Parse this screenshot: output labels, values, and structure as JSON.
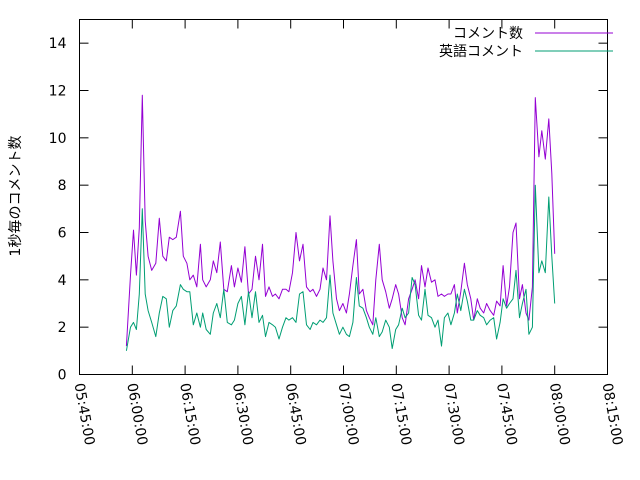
{
  "chart_data": {
    "type": "line",
    "title": "",
    "xlabel": "",
    "ylabel": "1秒毎のコメント数",
    "xlim": [
      "05:45:00",
      "08:15:00"
    ],
    "ylim": [
      0,
      15
    ],
    "x_ticks": [
      "05:45:00",
      "06:00:00",
      "06:15:00",
      "06:30:00",
      "06:45:00",
      "07:00:00",
      "07:15:00",
      "07:30:00",
      "07:45:00",
      "08:00:00",
      "08:15:00"
    ],
    "y_ticks": [
      "0",
      "2",
      "4",
      "6",
      "8",
      "10",
      "12",
      "14"
    ],
    "legend_position": "top-right",
    "grid": false,
    "series": [
      {
        "name": "コメント数",
        "color": "#9400d3",
        "points": [
          [
            "05:58:20",
            1.2
          ],
          [
            "05:59:30",
            4.2
          ],
          [
            "06:00:20",
            6.1
          ],
          [
            "06:01:10",
            4.2
          ],
          [
            "06:02:00",
            6.2
          ],
          [
            "06:02:50",
            11.8
          ],
          [
            "06:03:40",
            6.5
          ],
          [
            "06:04:30",
            5.0
          ],
          [
            "06:05:30",
            4.4
          ],
          [
            "06:06:40",
            4.7
          ],
          [
            "06:07:40",
            6.6
          ],
          [
            "06:08:40",
            5.0
          ],
          [
            "06:09:40",
            4.8
          ],
          [
            "06:10:30",
            5.8
          ],
          [
            "06:11:30",
            5.7
          ],
          [
            "06:12:30",
            5.8
          ],
          [
            "06:13:40",
            6.9
          ],
          [
            "06:14:30",
            5.0
          ],
          [
            "06:15:30",
            4.7
          ],
          [
            "06:16:20",
            4.0
          ],
          [
            "06:17:20",
            4.2
          ],
          [
            "06:18:20",
            3.7
          ],
          [
            "06:19:20",
            5.5
          ],
          [
            "06:20:00",
            4.0
          ],
          [
            "06:21:00",
            3.7
          ],
          [
            "06:22:10",
            4.0
          ],
          [
            "06:23:00",
            4.8
          ],
          [
            "06:24:00",
            4.3
          ],
          [
            "06:25:00",
            5.6
          ],
          [
            "06:26:00",
            3.6
          ],
          [
            "06:27:00",
            3.5
          ],
          [
            "06:28:10",
            4.6
          ],
          [
            "06:29:00",
            3.7
          ],
          [
            "06:30:00",
            4.5
          ],
          [
            "06:31:00",
            3.9
          ],
          [
            "06:32:00",
            5.4
          ],
          [
            "06:33:00",
            3.4
          ],
          [
            "06:34:00",
            3.6
          ],
          [
            "06:35:00",
            5.0
          ],
          [
            "06:36:00",
            4.0
          ],
          [
            "06:37:00",
            5.5
          ],
          [
            "06:37:50",
            3.3
          ],
          [
            "06:38:50",
            3.7
          ],
          [
            "06:39:50",
            3.3
          ],
          [
            "06:40:40",
            3.4
          ],
          [
            "06:41:40",
            3.2
          ],
          [
            "06:42:40",
            3.6
          ],
          [
            "06:43:40",
            3.6
          ],
          [
            "06:44:30",
            3.5
          ],
          [
            "06:45:30",
            4.3
          ],
          [
            "06:46:30",
            6.0
          ],
          [
            "06:47:30",
            4.8
          ],
          [
            "06:48:30",
            5.5
          ],
          [
            "06:49:30",
            3.7
          ],
          [
            "06:50:30",
            3.5
          ],
          [
            "06:51:20",
            3.6
          ],
          [
            "06:52:20",
            3.3
          ],
          [
            "06:53:20",
            3.6
          ],
          [
            "06:54:10",
            4.5
          ],
          [
            "06:55:10",
            4.0
          ],
          [
            "06:56:10",
            6.7
          ],
          [
            "06:57:00",
            4.8
          ],
          [
            "06:58:00",
            3.2
          ],
          [
            "06:58:50",
            2.7
          ],
          [
            "06:59:50",
            3.0
          ],
          [
            "07:00:50",
            2.6
          ],
          [
            "07:01:40",
            3.4
          ],
          [
            "07:02:40",
            4.6
          ],
          [
            "07:03:40",
            5.7
          ],
          [
            "07:04:30",
            3.4
          ],
          [
            "07:05:30",
            3.6
          ],
          [
            "07:06:30",
            2.7
          ],
          [
            "07:07:20",
            2.4
          ],
          [
            "07:08:20",
            2.1
          ],
          [
            "07:09:10",
            4.0
          ],
          [
            "07:10:10",
            5.5
          ],
          [
            "07:11:00",
            4.0
          ],
          [
            "07:12:00",
            3.5
          ],
          [
            "07:13:00",
            2.8
          ],
          [
            "07:13:50",
            3.2
          ],
          [
            "07:14:50",
            3.8
          ],
          [
            "07:15:40",
            3.4
          ],
          [
            "07:16:40",
            2.4
          ],
          [
            "07:17:30",
            2.1
          ],
          [
            "07:18:30",
            3.2
          ],
          [
            "07:19:30",
            3.6
          ],
          [
            "07:20:20",
            4.0
          ],
          [
            "07:21:20",
            3.2
          ],
          [
            "07:22:10",
            4.6
          ],
          [
            "07:23:10",
            3.7
          ],
          [
            "07:24:00",
            4.5
          ],
          [
            "07:25:00",
            3.9
          ],
          [
            "07:26:00",
            4.0
          ],
          [
            "07:26:50",
            3.3
          ],
          [
            "07:27:50",
            3.4
          ],
          [
            "07:28:40",
            3.3
          ],
          [
            "07:29:40",
            3.4
          ],
          [
            "07:30:30",
            3.4
          ],
          [
            "07:31:30",
            3.8
          ],
          [
            "07:32:20",
            2.6
          ],
          [
            "07:33:20",
            3.5
          ],
          [
            "07:34:20",
            4.7
          ],
          [
            "07:35:10",
            3.8
          ],
          [
            "07:36:10",
            3.2
          ],
          [
            "07:37:00",
            2.3
          ],
          [
            "07:38:00",
            3.2
          ],
          [
            "07:38:50",
            2.8
          ],
          [
            "07:39:50",
            2.6
          ],
          [
            "07:40:40",
            3.0
          ],
          [
            "07:41:40",
            2.7
          ],
          [
            "07:42:40",
            2.5
          ],
          [
            "07:43:30",
            3.1
          ],
          [
            "07:44:30",
            2.9
          ],
          [
            "07:45:20",
            4.6
          ],
          [
            "07:46:20",
            2.9
          ],
          [
            "07:47:10",
            3.7
          ],
          [
            "07:48:10",
            6.0
          ],
          [
            "07:49:00",
            6.4
          ],
          [
            "07:50:00",
            3.2
          ],
          [
            "07:50:50",
            3.8
          ],
          [
            "07:51:50",
            2.6
          ],
          [
            "07:52:40",
            2.3
          ],
          [
            "07:53:40",
            3.7
          ],
          [
            "07:54:30",
            11.7
          ],
          [
            "07:55:30",
            9.2
          ],
          [
            "07:56:20",
            10.3
          ],
          [
            "07:57:20",
            9.1
          ],
          [
            "07:58:20",
            10.8
          ],
          [
            "07:59:10",
            8.5
          ],
          [
            "08:00:00",
            5.1
          ]
        ]
      },
      {
        "name": "英語コメント",
        "color": "#009e73",
        "points": [
          [
            "05:58:20",
            1.0
          ],
          [
            "05:59:30",
            2.0
          ],
          [
            "06:00:20",
            2.2
          ],
          [
            "06:01:10",
            1.9
          ],
          [
            "06:02:00",
            3.4
          ],
          [
            "06:02:50",
            7.0
          ],
          [
            "06:03:40",
            3.4
          ],
          [
            "06:04:30",
            2.7
          ],
          [
            "06:05:30",
            2.2
          ],
          [
            "06:06:40",
            1.6
          ],
          [
            "06:07:40",
            2.6
          ],
          [
            "06:08:40",
            3.3
          ],
          [
            "06:09:40",
            3.2
          ],
          [
            "06:10:30",
            2.0
          ],
          [
            "06:11:30",
            2.7
          ],
          [
            "06:12:30",
            2.9
          ],
          [
            "06:13:40",
            3.8
          ],
          [
            "06:14:30",
            3.6
          ],
          [
            "06:15:30",
            3.5
          ],
          [
            "06:16:20",
            3.5
          ],
          [
            "06:17:20",
            2.1
          ],
          [
            "06:18:20",
            2.6
          ],
          [
            "06:19:20",
            2.0
          ],
          [
            "06:20:00",
            2.6
          ],
          [
            "06:21:00",
            1.9
          ],
          [
            "06:22:10",
            1.7
          ],
          [
            "06:23:00",
            2.6
          ],
          [
            "06:24:00",
            3.0
          ],
          [
            "06:25:00",
            2.4
          ],
          [
            "06:26:00",
            3.6
          ],
          [
            "06:27:00",
            2.2
          ],
          [
            "06:28:10",
            2.1
          ],
          [
            "06:29:00",
            2.3
          ],
          [
            "06:30:00",
            3.0
          ],
          [
            "06:31:00",
            3.3
          ],
          [
            "06:32:00",
            2.1
          ],
          [
            "06:33:00",
            3.5
          ],
          [
            "06:34:00",
            2.4
          ],
          [
            "06:35:00",
            3.5
          ],
          [
            "06:36:00",
            2.2
          ],
          [
            "06:37:00",
            2.5
          ],
          [
            "06:37:50",
            1.6
          ],
          [
            "06:38:50",
            2.2
          ],
          [
            "06:39:50",
            2.1
          ],
          [
            "06:40:40",
            2.0
          ],
          [
            "06:41:40",
            1.5
          ],
          [
            "06:42:40",
            2.0
          ],
          [
            "06:43:40",
            2.4
          ],
          [
            "06:44:30",
            2.3
          ],
          [
            "06:45:30",
            2.4
          ],
          [
            "06:46:30",
            2.2
          ],
          [
            "06:47:30",
            3.4
          ],
          [
            "06:48:30",
            3.5
          ],
          [
            "06:49:30",
            2.1
          ],
          [
            "06:50:30",
            1.9
          ],
          [
            "06:51:20",
            2.2
          ],
          [
            "06:52:20",
            2.1
          ],
          [
            "06:53:20",
            2.3
          ],
          [
            "06:54:10",
            2.2
          ],
          [
            "06:55:10",
            2.4
          ],
          [
            "06:56:10",
            4.2
          ],
          [
            "06:57:00",
            2.6
          ],
          [
            "06:58:00",
            2.1
          ],
          [
            "06:58:50",
            1.7
          ],
          [
            "06:59:50",
            2.0
          ],
          [
            "07:00:50",
            1.7
          ],
          [
            "07:01:40",
            1.6
          ],
          [
            "07:02:40",
            2.2
          ],
          [
            "07:03:40",
            4.1
          ],
          [
            "07:04:30",
            2.9
          ],
          [
            "07:05:30",
            2.8
          ],
          [
            "07:06:30",
            2.4
          ],
          [
            "07:07:20",
            2.0
          ],
          [
            "07:08:20",
            1.7
          ],
          [
            "07:09:10",
            2.4
          ],
          [
            "07:10:10",
            1.6
          ],
          [
            "07:11:00",
            1.8
          ],
          [
            "07:12:00",
            2.3
          ],
          [
            "07:13:00",
            2.0
          ],
          [
            "07:13:50",
            1.1
          ],
          [
            "07:14:50",
            1.9
          ],
          [
            "07:15:40",
            2.1
          ],
          [
            "07:16:40",
            2.8
          ],
          [
            "07:17:30",
            2.4
          ],
          [
            "07:18:30",
            2.6
          ],
          [
            "07:19:30",
            4.1
          ],
          [
            "07:20:20",
            3.8
          ],
          [
            "07:21:20",
            2.5
          ],
          [
            "07:22:10",
            2.3
          ],
          [
            "07:23:10",
            3.6
          ],
          [
            "07:24:00",
            2.5
          ],
          [
            "07:25:00",
            2.4
          ],
          [
            "07:26:00",
            2.0
          ],
          [
            "07:26:50",
            2.3
          ],
          [
            "07:27:50",
            1.2
          ],
          [
            "07:28:40",
            2.4
          ],
          [
            "07:29:40",
            2.6
          ],
          [
            "07:30:30",
            2.1
          ],
          [
            "07:31:30",
            2.6
          ],
          [
            "07:32:20",
            3.4
          ],
          [
            "07:33:20",
            2.7
          ],
          [
            "07:34:20",
            3.6
          ],
          [
            "07:35:10",
            3.1
          ],
          [
            "07:36:10",
            2.3
          ],
          [
            "07:37:00",
            2.3
          ],
          [
            "07:38:00",
            2.7
          ],
          [
            "07:38:50",
            2.5
          ],
          [
            "07:39:50",
            2.4
          ],
          [
            "07:40:40",
            2.1
          ],
          [
            "07:41:40",
            2.3
          ],
          [
            "07:42:40",
            2.4
          ],
          [
            "07:43:30",
            1.5
          ],
          [
            "07:44:30",
            2.2
          ],
          [
            "07:45:20",
            3.2
          ],
          [
            "07:46:20",
            2.8
          ],
          [
            "07:47:10",
            3.0
          ],
          [
            "07:48:10",
            3.2
          ],
          [
            "07:49:00",
            4.4
          ],
          [
            "07:50:00",
            2.4
          ],
          [
            "07:50:50",
            3.0
          ],
          [
            "07:51:50",
            3.6
          ],
          [
            "07:52:40",
            1.7
          ],
          [
            "07:53:40",
            2.0
          ],
          [
            "07:54:30",
            8.0
          ],
          [
            "07:55:30",
            4.3
          ],
          [
            "07:56:20",
            4.8
          ],
          [
            "07:57:20",
            4.3
          ],
          [
            "07:58:20",
            7.5
          ],
          [
            "07:59:10",
            5.0
          ],
          [
            "08:00:00",
            3.0
          ]
        ]
      }
    ]
  }
}
